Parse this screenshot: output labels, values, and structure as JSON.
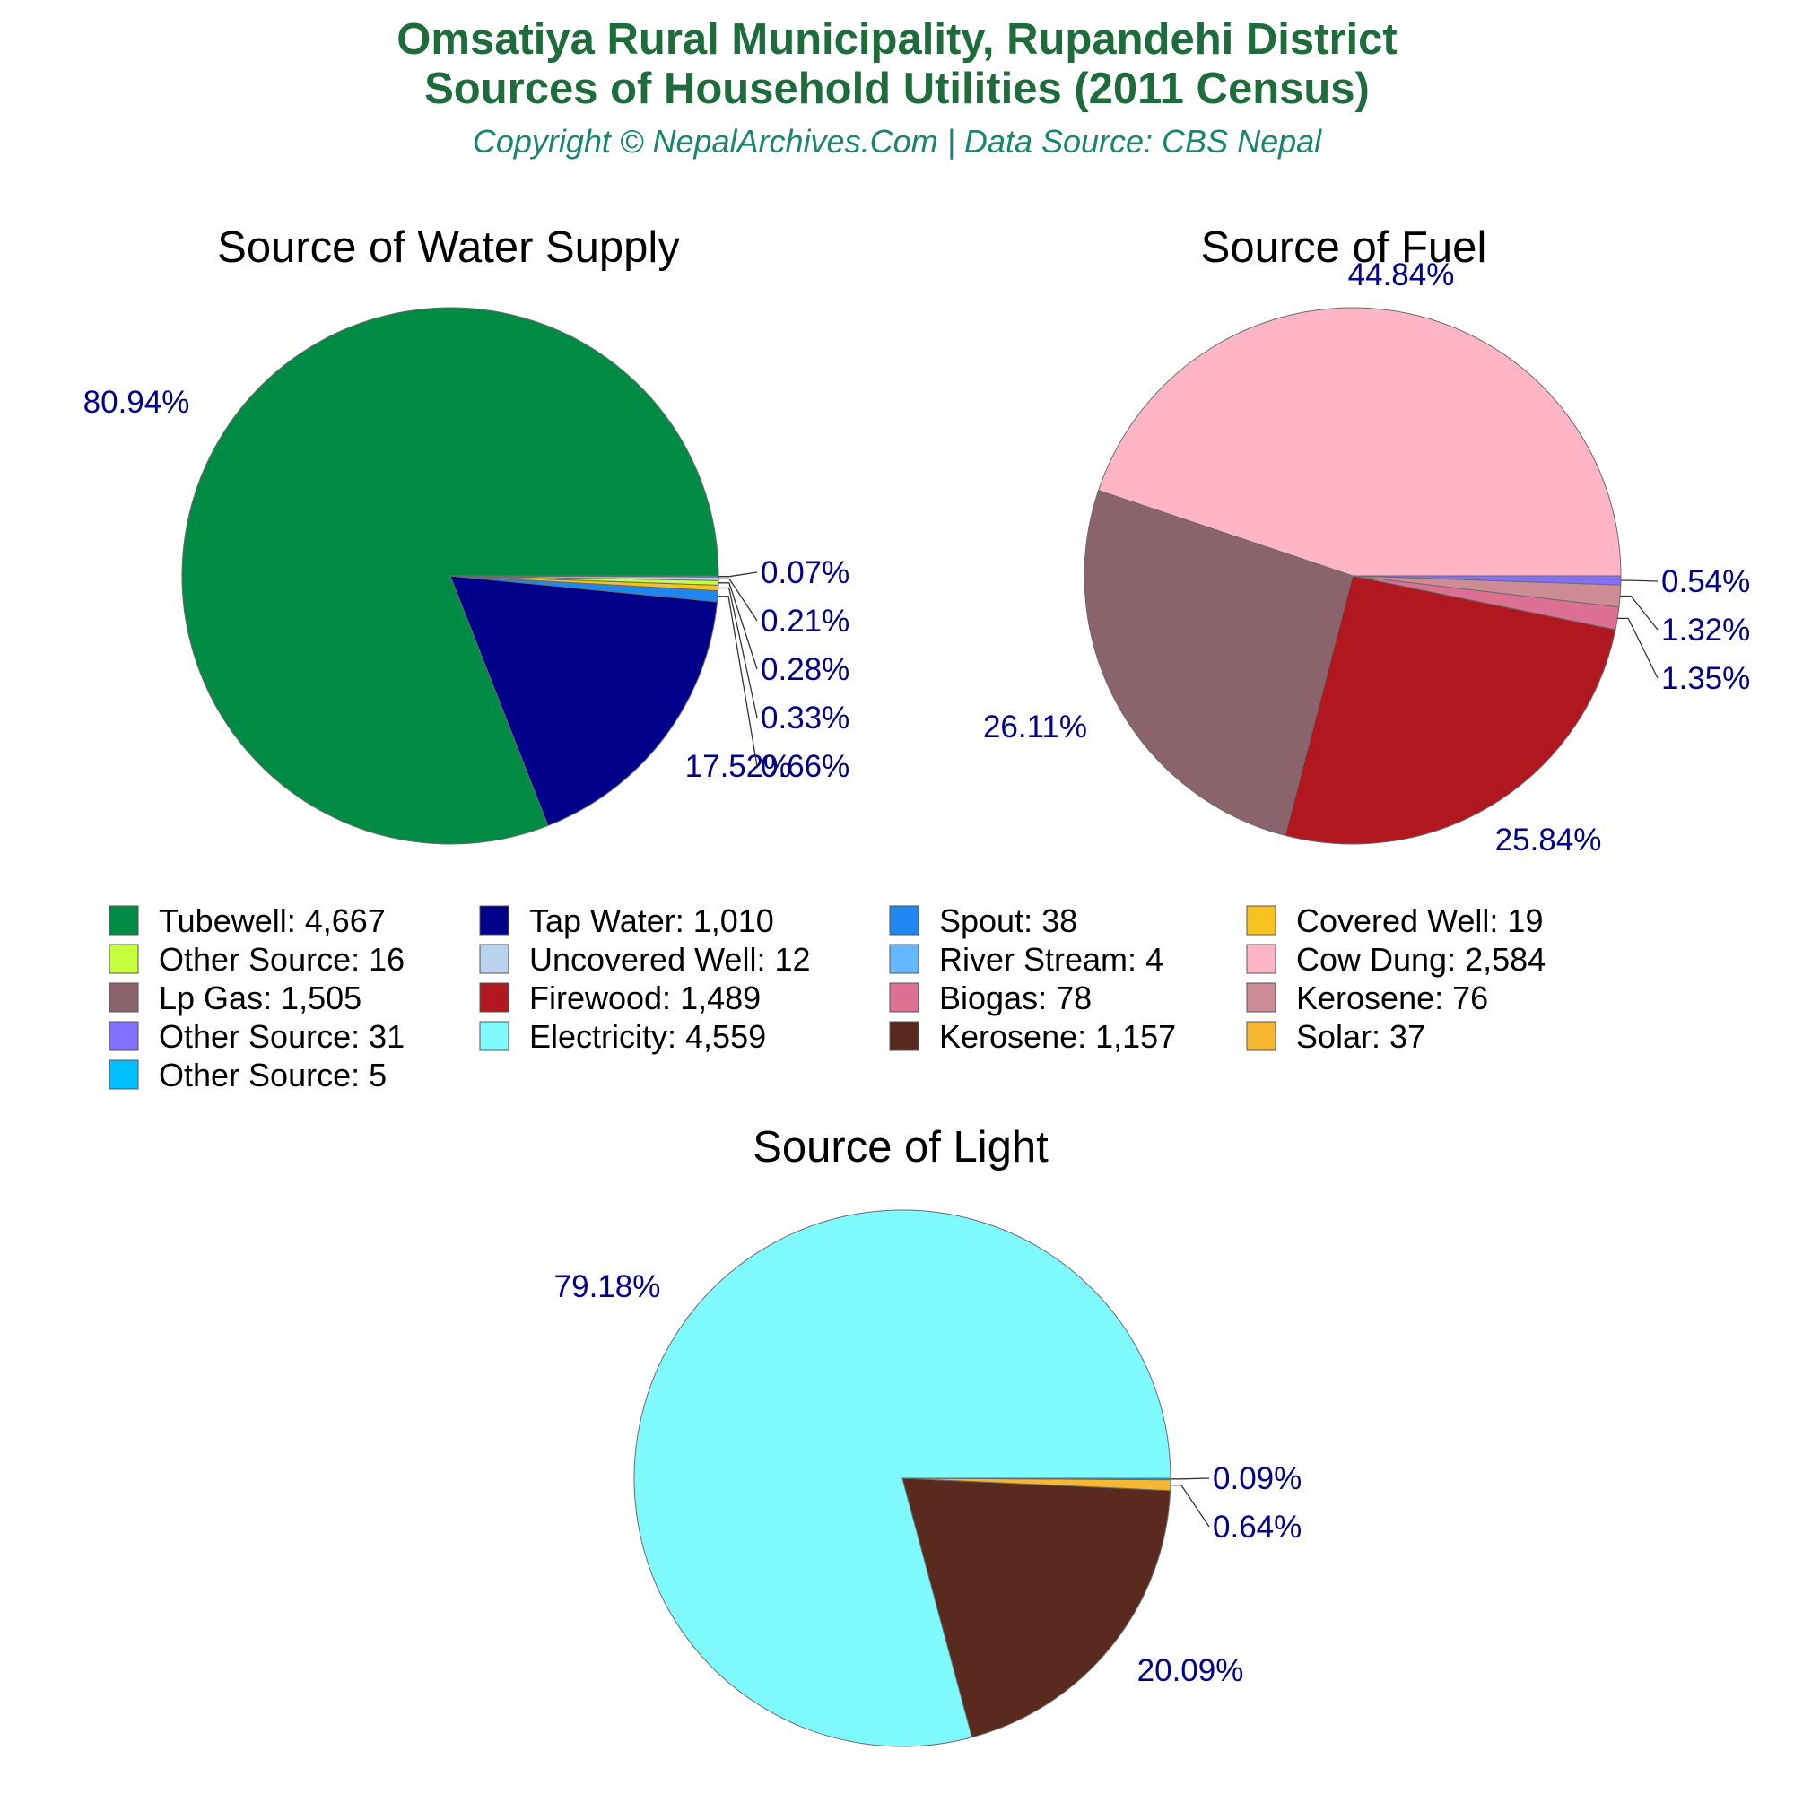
{
  "header": {
    "title_line1": "Omsatiya Rural Municipality, Rupandehi District",
    "title_line2": "Sources of Household Utilities (2011 Census)",
    "copyright": "Copyright © NepalArchives.Com | Data Source: CBS Nepal"
  },
  "chart_data": [
    {
      "type": "pie",
      "title": "Source of Water Supply",
      "slices": [
        {
          "label": "Tubewell",
          "value": 4667,
          "percent_label": "80.94%",
          "color": "#008b45"
        },
        {
          "label": "Tap Water",
          "value": 1010,
          "percent_label": "17.52%",
          "color": "#00008b"
        },
        {
          "label": "Spout",
          "value": 38,
          "percent_label": "0.66%",
          "color": "#1e87f0"
        },
        {
          "label": "Covered Well",
          "value": 19,
          "percent_label": "0.33%",
          "color": "#f7c11e"
        },
        {
          "label": "Other Source",
          "value": 16,
          "percent_label": "0.28%",
          "color": "#c5ff3e"
        },
        {
          "label": "Uncovered Well",
          "value": 12,
          "percent_label": "0.21%",
          "color": "#b9d3ee"
        },
        {
          "label": "River Stream",
          "value": 4,
          "percent_label": "0.07%",
          "color": "#63b8ff"
        }
      ]
    },
    {
      "type": "pie",
      "title": "Source of Fuel",
      "slices": [
        {
          "label": "Cow Dung",
          "value": 2584,
          "percent_label": "44.84%",
          "color": "#ffb5c5"
        },
        {
          "label": "Lp Gas",
          "value": 1505,
          "percent_label": "26.11%",
          "color": "#8b636c"
        },
        {
          "label": "Firewood",
          "value": 1489,
          "percent_label": "25.84%",
          "color": "#b0171f"
        },
        {
          "label": "Biogas",
          "value": 78,
          "percent_label": "1.35%",
          "color": "#db7093"
        },
        {
          "label": "Kerosene",
          "value": 76,
          "percent_label": "1.32%",
          "color": "#cd8c95"
        },
        {
          "label": "Other Source",
          "value": 31,
          "percent_label": "0.54%",
          "color": "#8470ff"
        }
      ]
    },
    {
      "type": "pie",
      "title": "Source of Light",
      "slices": [
        {
          "label": "Electricity",
          "value": 4559,
          "percent_label": "79.18%",
          "color": "#7ffaff"
        },
        {
          "label": "Kerosene",
          "value": 1157,
          "percent_label": "20.09%",
          "color": "#5b2a1f"
        },
        {
          "label": "Solar",
          "value": 37,
          "percent_label": "0.64%",
          "color": "#f7b733"
        },
        {
          "label": "Other Source",
          "value": 5,
          "percent_label": "0.09%",
          "color": "#00bfff"
        }
      ]
    }
  ],
  "legend": [
    {
      "text": "Tubewell: 4,667",
      "color": "#008b45"
    },
    {
      "text": "Tap Water: 1,010",
      "color": "#00008b"
    },
    {
      "text": "Spout: 38",
      "color": "#1e87f0"
    },
    {
      "text": "Covered Well: 19",
      "color": "#f7c11e"
    },
    {
      "text": "Other Source: 16",
      "color": "#c5ff3e"
    },
    {
      "text": "Uncovered Well: 12",
      "color": "#b9d3ee"
    },
    {
      "text": "River Stream: 4",
      "color": "#63b8ff"
    },
    {
      "text": "Cow Dung: 2,584",
      "color": "#ffb5c5"
    },
    {
      "text": "Lp Gas: 1,505",
      "color": "#8b636c"
    },
    {
      "text": "Firewood: 1,489",
      "color": "#b0171f"
    },
    {
      "text": "Biogas: 78",
      "color": "#db7093"
    },
    {
      "text": "Kerosene: 76",
      "color": "#cd8c95"
    },
    {
      "text": "Other Source: 31",
      "color": "#8470ff"
    },
    {
      "text": "Electricity: 4,559",
      "color": "#7ffaff"
    },
    {
      "text": "Kerosene: 1,157",
      "color": "#5b2a1f"
    },
    {
      "text": "Solar: 37",
      "color": "#f7b733"
    },
    {
      "text": "Other Source: 5",
      "color": "#00bfff"
    }
  ]
}
